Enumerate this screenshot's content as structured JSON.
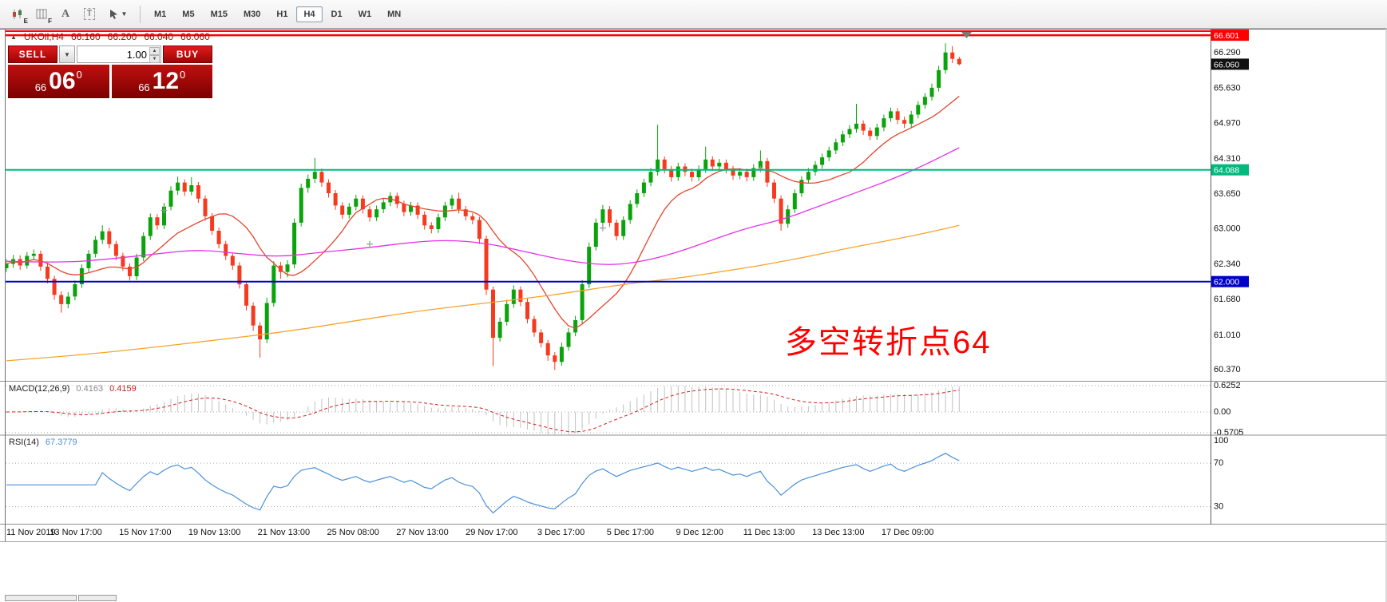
{
  "toolbar": {
    "tools": [
      {
        "name": "chart-template-e",
        "sub": "E"
      },
      {
        "name": "chart-template-f",
        "sub": "F"
      },
      {
        "name": "text-annotation",
        "label": "A"
      },
      {
        "name": "text-box",
        "label": "T"
      },
      {
        "name": "cursor-tool",
        "label": ""
      }
    ],
    "timeframes": [
      "M1",
      "M5",
      "M15",
      "M30",
      "H1",
      "H4",
      "D1",
      "W1",
      "MN"
    ],
    "active_timeframe": "H4"
  },
  "chart": {
    "header": {
      "marker": "▲",
      "symbol": "UKOil,H4",
      "open": "66.160",
      "high": "66.200",
      "low": "66.040",
      "close": "66.060"
    }
  },
  "trade_panel": {
    "sell_label": "SELL",
    "buy_label": "BUY",
    "volume": "1.00",
    "bid": {
      "prefix": "66",
      "big": "06",
      "sup": "0"
    },
    "ask": {
      "prefix": "66",
      "big": "12",
      "sup": "0"
    }
  },
  "chart_data": {
    "type": "candlestick",
    "symbol": "UKOil",
    "timeframe": "H4",
    "price_range_view": [
      60.15,
      66.71
    ],
    "candles": [
      [
        62.25,
        62.42,
        62.18,
        62.33
      ],
      [
        62.33,
        62.5,
        62.26,
        62.42
      ],
      [
        62.42,
        62.49,
        62.22,
        62.3
      ],
      [
        62.3,
        62.55,
        62.24,
        62.48
      ],
      [
        62.48,
        62.6,
        62.41,
        62.52
      ],
      [
        62.52,
        62.58,
        62.2,
        62.28
      ],
      [
        62.28,
        62.34,
        61.97,
        62.05
      ],
      [
        62.05,
        62.11,
        61.66,
        61.75
      ],
      [
        61.75,
        61.82,
        61.42,
        61.58
      ],
      [
        61.58,
        61.8,
        61.5,
        61.72
      ],
      [
        61.72,
        62.02,
        61.65,
        61.95
      ],
      [
        61.95,
        62.32,
        61.88,
        62.25
      ],
      [
        62.25,
        62.59,
        62.18,
        62.52
      ],
      [
        62.52,
        62.85,
        62.45,
        62.78
      ],
      [
        62.78,
        63.05,
        62.7,
        62.94
      ],
      [
        62.94,
        63.0,
        62.62,
        62.7
      ],
      [
        62.7,
        62.76,
        62.4,
        62.48
      ],
      [
        62.48,
        62.54,
        62.2,
        62.28
      ],
      [
        62.28,
        62.34,
        62.02,
        62.1
      ],
      [
        62.1,
        62.52,
        62.03,
        62.45
      ],
      [
        62.45,
        62.92,
        62.38,
        62.85
      ],
      [
        62.85,
        63.27,
        62.78,
        63.2
      ],
      [
        63.2,
        63.26,
        62.97,
        63.05
      ],
      [
        63.05,
        63.47,
        62.98,
        63.4
      ],
      [
        63.4,
        63.78,
        63.33,
        63.7
      ],
      [
        63.7,
        63.96,
        63.62,
        63.85
      ],
      [
        63.85,
        63.91,
        63.6,
        63.68
      ],
      [
        63.68,
        63.95,
        63.61,
        63.8
      ],
      [
        63.8,
        63.86,
        63.47,
        63.55
      ],
      [
        63.55,
        63.61,
        63.14,
        63.22
      ],
      [
        63.22,
        63.28,
        62.87,
        62.95
      ],
      [
        62.95,
        63.01,
        62.62,
        62.7
      ],
      [
        62.7,
        62.76,
        62.4,
        62.48
      ],
      [
        62.48,
        62.54,
        62.22,
        62.3
      ],
      [
        62.3,
        62.36,
        61.87,
        61.95
      ],
      [
        61.95,
        62.01,
        61.46,
        61.55
      ],
      [
        61.55,
        61.61,
        61.08,
        61.18
      ],
      [
        61.18,
        61.24,
        60.58,
        60.92
      ],
      [
        60.92,
        61.7,
        60.85,
        61.6
      ],
      [
        61.6,
        62.38,
        61.53,
        62.3
      ],
      [
        62.3,
        62.37,
        62.05,
        62.18
      ],
      [
        62.18,
        62.4,
        62.08,
        62.32
      ],
      [
        62.32,
        63.18,
        62.25,
        63.1
      ],
      [
        63.1,
        63.83,
        63.03,
        63.75
      ],
      [
        63.75,
        64.0,
        63.66,
        63.92
      ],
      [
        63.92,
        64.31,
        63.84,
        64.05
      ],
      [
        64.05,
        64.11,
        63.77,
        63.85
      ],
      [
        63.85,
        63.91,
        63.57,
        63.65
      ],
      [
        63.65,
        63.71,
        63.34,
        63.42
      ],
      [
        63.42,
        63.48,
        63.17,
        63.25
      ],
      [
        63.25,
        63.47,
        63.18,
        63.4
      ],
      [
        63.4,
        63.62,
        63.33,
        63.55
      ],
      [
        63.55,
        63.61,
        63.27,
        63.35
      ],
      [
        63.35,
        63.41,
        63.12,
        63.2
      ],
      [
        63.2,
        63.42,
        63.13,
        63.35
      ],
      [
        63.35,
        63.55,
        63.28,
        63.48
      ],
      [
        63.48,
        63.67,
        63.41,
        63.6
      ],
      [
        63.6,
        63.66,
        63.37,
        63.45
      ],
      [
        63.45,
        63.51,
        63.22,
        63.3
      ],
      [
        63.3,
        63.49,
        63.23,
        63.42
      ],
      [
        63.42,
        63.48,
        63.17,
        63.25
      ],
      [
        63.25,
        63.31,
        62.97,
        63.05
      ],
      [
        63.05,
        63.11,
        62.9,
        62.98
      ],
      [
        62.98,
        63.27,
        62.91,
        63.2
      ],
      [
        63.2,
        63.49,
        63.13,
        63.42
      ],
      [
        63.42,
        63.62,
        63.35,
        63.55
      ],
      [
        63.55,
        63.66,
        63.27,
        63.35
      ],
      [
        63.35,
        63.41,
        63.14,
        63.22
      ],
      [
        63.22,
        63.28,
        63.07,
        63.15
      ],
      [
        63.15,
        63.21,
        62.7,
        62.8
      ],
      [
        62.8,
        62.86,
        61.75,
        61.85
      ],
      [
        61.85,
        61.91,
        60.42,
        60.95
      ],
      [
        60.95,
        61.33,
        60.88,
        61.25
      ],
      [
        61.25,
        61.66,
        61.18,
        61.58
      ],
      [
        61.58,
        61.93,
        61.51,
        61.85
      ],
      [
        61.85,
        61.91,
        61.54,
        61.62
      ],
      [
        61.62,
        61.68,
        61.22,
        61.3
      ],
      [
        61.3,
        61.36,
        60.97,
        61.05
      ],
      [
        61.05,
        61.11,
        60.77,
        60.85
      ],
      [
        60.85,
        60.91,
        60.52,
        60.62
      ],
      [
        60.62,
        60.68,
        60.35,
        60.5
      ],
      [
        60.5,
        60.86,
        60.43,
        60.78
      ],
      [
        60.78,
        61.13,
        60.71,
        61.05
      ],
      [
        61.05,
        61.36,
        60.98,
        61.28
      ],
      [
        61.28,
        62.03,
        61.21,
        61.95
      ],
      [
        61.95,
        62.73,
        61.88,
        62.65
      ],
      [
        62.65,
        63.18,
        62.58,
        63.1
      ],
      [
        63.1,
        63.43,
        63.02,
        63.35
      ],
      [
        63.35,
        63.41,
        63.02,
        63.1
      ],
      [
        63.1,
        63.16,
        62.77,
        62.85
      ],
      [
        62.85,
        63.22,
        62.78,
        63.15
      ],
      [
        63.15,
        63.52,
        63.08,
        63.45
      ],
      [
        63.45,
        63.72,
        63.38,
        63.65
      ],
      [
        63.65,
        63.92,
        63.58,
        63.85
      ],
      [
        63.85,
        64.12,
        63.78,
        64.05
      ],
      [
        64.05,
        64.93,
        63.98,
        64.28
      ],
      [
        64.28,
        64.34,
        64.02,
        64.1
      ],
      [
        64.1,
        64.16,
        63.87,
        63.95
      ],
      [
        63.95,
        64.22,
        63.88,
        64.15
      ],
      [
        64.15,
        64.21,
        63.97,
        64.05
      ],
      [
        64.05,
        64.11,
        63.87,
        63.95
      ],
      [
        63.95,
        64.17,
        63.88,
        64.1
      ],
      [
        64.1,
        64.52,
        64.03,
        64.28
      ],
      [
        64.28,
        64.34,
        64.07,
        64.15
      ],
      [
        64.15,
        64.29,
        64.08,
        64.22
      ],
      [
        64.22,
        64.28,
        64.02,
        64.1
      ],
      [
        64.1,
        64.16,
        63.9,
        63.98
      ],
      [
        63.98,
        64.12,
        63.91,
        64.05
      ],
      [
        64.05,
        64.11,
        63.87,
        63.95
      ],
      [
        63.95,
        64.19,
        63.88,
        64.12
      ],
      [
        64.12,
        64.45,
        64.05,
        64.25
      ],
      [
        64.25,
        64.31,
        63.77,
        63.85
      ],
      [
        63.85,
        63.91,
        63.47,
        63.55
      ],
      [
        63.55,
        63.61,
        62.95,
        63.08
      ],
      [
        63.08,
        63.43,
        63.01,
        63.35
      ],
      [
        63.35,
        63.72,
        63.28,
        63.65
      ],
      [
        63.65,
        63.97,
        63.58,
        63.9
      ],
      [
        63.9,
        64.12,
        63.83,
        64.05
      ],
      [
        64.05,
        64.25,
        63.98,
        64.18
      ],
      [
        64.18,
        64.39,
        64.11,
        64.32
      ],
      [
        64.32,
        64.52,
        64.25,
        64.45
      ],
      [
        64.45,
        64.67,
        64.38,
        64.6
      ],
      [
        64.6,
        64.82,
        64.53,
        64.75
      ],
      [
        64.75,
        64.92,
        64.68,
        64.85
      ],
      [
        64.85,
        65.32,
        64.78,
        64.95
      ],
      [
        64.95,
        65.01,
        64.74,
        64.82
      ],
      [
        64.82,
        64.88,
        64.64,
        64.72
      ],
      [
        64.72,
        64.95,
        64.65,
        64.88
      ],
      [
        64.88,
        65.12,
        64.81,
        65.05
      ],
      [
        65.05,
        65.25,
        64.98,
        65.18
      ],
      [
        65.18,
        65.24,
        64.94,
        65.02
      ],
      [
        65.02,
        65.08,
        64.87,
        64.95
      ],
      [
        64.95,
        65.19,
        64.88,
        65.12
      ],
      [
        65.12,
        65.37,
        65.05,
        65.3
      ],
      [
        65.3,
        65.52,
        65.23,
        65.45
      ],
      [
        65.45,
        65.7,
        65.38,
        65.62
      ],
      [
        65.62,
        66.03,
        65.55,
        65.95
      ],
      [
        65.95,
        66.45,
        65.88,
        66.28
      ],
      [
        66.28,
        66.4,
        66.08,
        66.16
      ],
      [
        66.16,
        66.2,
        66.04,
        66.06
      ]
    ],
    "price_axis": [
      "66.290",
      "65.630",
      "64.970",
      "64.310",
      "63.650",
      "63.000",
      "62.340",
      "61.680",
      "61.010",
      "60.370"
    ],
    "x_labels": [
      "11 Nov 2019",
      "13 Nov 17:00",
      "15 Nov 17:00",
      "19 Nov 13:00",
      "21 Nov 13:00",
      "25 Nov 08:00",
      "27 Nov 13:00",
      "29 Nov 17:00",
      "3 Dec 17:00",
      "5 Dec 17:00",
      "9 Dec 12:00",
      "11 Dec 13:00",
      "13 Dec 13:00",
      "17 Dec 09:00"
    ],
    "levels": [
      {
        "price": 66.73,
        "label": null,
        "color": "#ff0000",
        "width": 2
      },
      {
        "price": 66.601,
        "label": "66.601",
        "color": "#ff0000",
        "width": 2.5
      },
      {
        "price": 64.088,
        "label": "64.088",
        "color": "#00b97d",
        "width": 2
      },
      {
        "price": 62.0,
        "label": "62.000",
        "color": "#0000c8",
        "width": 2
      }
    ],
    "current_price": {
      "label": "66.060",
      "value": 66.06,
      "bg": "#111111"
    },
    "annotation": {
      "text": "多空转折点64",
      "color": "#ff0000"
    },
    "markers": [
      [
        23,
        63.33
      ],
      [
        53,
        62.7
      ],
      [
        87,
        63.0
      ],
      [
        110,
        64.1
      ]
    ],
    "overlays": {
      "ma_fast_period": 13,
      "magenta": [
        [
          0,
          62.38
        ],
        [
          8,
          62.35
        ],
        [
          15,
          62.42
        ],
        [
          22,
          62.52
        ],
        [
          28,
          62.6
        ],
        [
          34,
          62.52
        ],
        [
          40,
          62.46
        ],
        [
          46,
          62.55
        ],
        [
          52,
          62.62
        ],
        [
          58,
          62.72
        ],
        [
          64,
          62.78
        ],
        [
          70,
          62.72
        ],
        [
          76,
          62.55
        ],
        [
          82,
          62.38
        ],
        [
          88,
          62.3
        ],
        [
          93,
          62.38
        ],
        [
          98,
          62.55
        ],
        [
          103,
          62.78
        ],
        [
          108,
          63.0
        ],
        [
          113,
          63.15
        ],
        [
          118,
          63.38
        ],
        [
          123,
          63.62
        ],
        [
          128,
          63.85
        ],
        [
          133,
          64.12
        ],
        [
          139,
          64.5
        ]
      ],
      "orange": [
        [
          0,
          60.52
        ],
        [
          10,
          60.62
        ],
        [
          20,
          60.75
        ],
        [
          30,
          60.9
        ],
        [
          40,
          61.05
        ],
        [
          50,
          61.25
        ],
        [
          60,
          61.45
        ],
        [
          70,
          61.6
        ],
        [
          80,
          61.75
        ],
        [
          90,
          61.95
        ],
        [
          95,
          62.02
        ],
        [
          100,
          62.1
        ],
        [
          105,
          62.2
        ],
        [
          110,
          62.3
        ],
        [
          115,
          62.42
        ],
        [
          120,
          62.55
        ],
        [
          125,
          62.68
        ],
        [
          130,
          62.8
        ],
        [
          135,
          62.93
        ],
        [
          139,
          63.05
        ]
      ]
    },
    "colors": {
      "bull": "#0ba30b",
      "bear": "#f7391e",
      "ma_fast": "#e2452c",
      "ma_mid": "#e631e6",
      "ma_slow": "#f5a42d",
      "macd_hist": "#c2c2c2",
      "macd_signal": "#d02020",
      "rsi": "#4a90d9"
    },
    "indicators": {
      "macd": {
        "title": "MACD(12,26,9)",
        "value_main": "0.4163",
        "value_signal": "0.4159",
        "axis": [
          {
            "label": "0.6252",
            "v": 0.6252
          },
          {
            "label": "0.00",
            "v": 0
          },
          {
            "label": "-0.5705",
            "v": -0.5705
          }
        ]
      },
      "rsi": {
        "title": "RSI(14)",
        "value": "67.3779",
        "levels": [
          70,
          30
        ],
        "axis": [
          {
            "label": "100",
            "v": 100
          },
          {
            "label": "70",
            "v": 70
          },
          {
            "label": "30",
            "v": 30
          }
        ]
      }
    }
  }
}
